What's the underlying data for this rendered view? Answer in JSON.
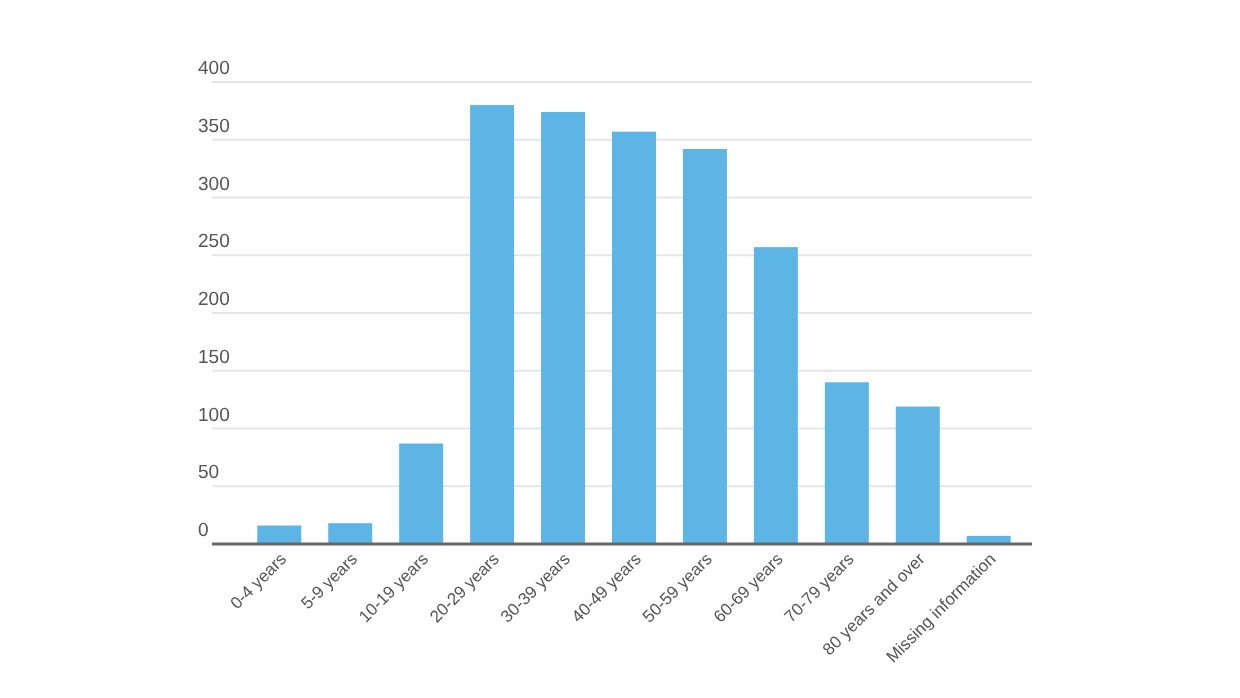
{
  "chart_data": {
    "type": "bar",
    "categories": [
      "0-4 years",
      "5-9 years",
      "10-19 years",
      "20-29 years",
      "30-39 years",
      "40-49 years",
      "50-59 years",
      "60-69 years",
      "70-79 years",
      "80 years and over",
      "Missing information"
    ],
    "values": [
      16,
      18,
      87,
      380,
      374,
      357,
      342,
      257,
      140,
      119,
      7
    ],
    "color": "#5db5e5",
    "ylim": [
      0,
      400
    ],
    "yticks": [
      0,
      50,
      100,
      150,
      200,
      250,
      300,
      350,
      400
    ],
    "grid": "y"
  }
}
